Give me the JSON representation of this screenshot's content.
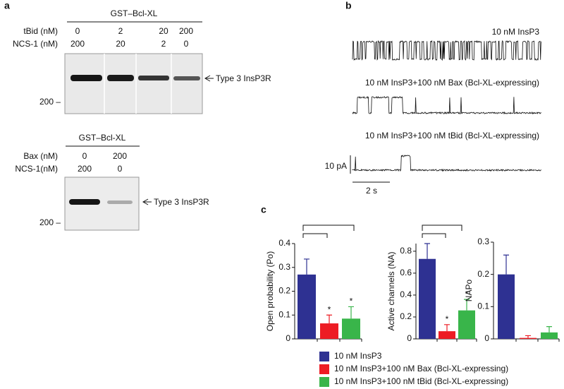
{
  "panel_a": {
    "label": "a",
    "blot1": {
      "header": "GST–Bcl-XL",
      "row1_label": "tBid (nM)",
      "row1": [
        "0",
        "2",
        "20",
        "200"
      ],
      "row2_label": "NCS-1 (nM)",
      "row2": [
        "200",
        "20",
        "2",
        "0"
      ],
      "band_label": "Type 3 InsP3R",
      "marker": "200 –"
    },
    "blot2": {
      "header": "GST–Bcl-XL",
      "row1_label": "Bax (nM)",
      "row1": [
        "0",
        "200"
      ],
      "row2_label": "NCS-1(nM)",
      "row2": [
        "200",
        "0"
      ],
      "band_label": "Type 3 InsP3R",
      "marker": "200 –"
    }
  },
  "panel_b": {
    "label": "b",
    "traces": [
      "10 nM InsP3",
      "10 nM InsP3+100 nM Bax (Bcl-XL-expressing)",
      "10 nM InsP3+100 nM tBid (Bcl-XL-expressing)"
    ],
    "scale_y": "10 pA",
    "scale_x": "2 s"
  },
  "panel_c": {
    "label": "c",
    "legend": [
      {
        "name": "10 nM InsP3",
        "color": "#2e3192"
      },
      {
        "name": "10 nM InsP3+100 nM Bax (Bcl-XL-expressing)",
        "color": "#ed1c24"
      },
      {
        "name": "10 nM InsP3+100 nM tBid (Bcl-XL-expressing)",
        "color": "#39b54a"
      }
    ]
  },
  "chart_data": [
    {
      "type": "bar",
      "ylabel": "Open probability (Po)",
      "values": [
        0.27,
        0.065,
        0.085
      ],
      "errors": [
        0.065,
        0.035,
        0.05
      ],
      "annotations": [
        null,
        "*",
        "*"
      ],
      "ylim": [
        0,
        0.4
      ],
      "yticks": [
        0,
        0.1,
        0.2,
        0.3,
        0.4
      ]
    },
    {
      "type": "bar",
      "ylabel": "Active channels (NA)",
      "values": [
        0.73,
        0.07,
        0.26
      ],
      "errors": [
        0.14,
        0.06,
        0.1
      ],
      "annotations": [
        null,
        "*",
        "*"
      ],
      "ylim": [
        0,
        0.87
      ],
      "yticks": [
        0,
        0.2,
        0.4,
        0.6,
        0.8
      ]
    },
    {
      "type": "bar",
      "ylabel": "NAPo",
      "values": [
        0.2,
        0.003,
        0.02
      ],
      "errors": [
        0.06,
        0.007,
        0.018
      ],
      "annotations": [
        null,
        null,
        null
      ],
      "ylim": [
        0,
        0.3
      ],
      "yticks": [
        0,
        0.1,
        0.2,
        0.3
      ]
    }
  ]
}
